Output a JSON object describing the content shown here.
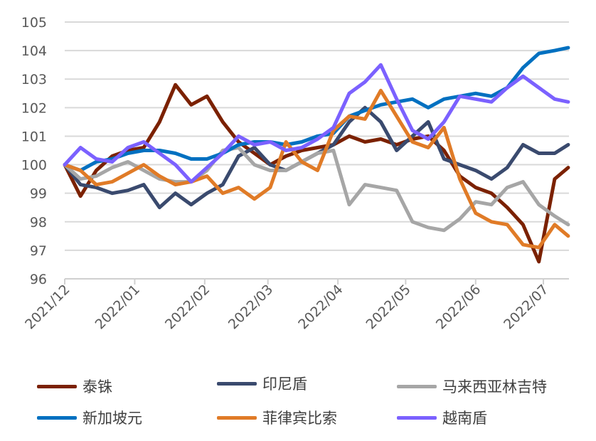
{
  "chart_data": {
    "type": "line",
    "ylim": [
      96,
      105
    ],
    "yticks": [
      96,
      97,
      98,
      99,
      100,
      101,
      102,
      103,
      104,
      105
    ],
    "xticks": [
      "2021/12",
      "2022/01",
      "2022/02",
      "2022/03",
      "2022/04",
      "2022/05",
      "2022/06",
      "2022/07"
    ],
    "grid": "horizontal",
    "legend_position": "bottom",
    "x": [
      "2021-12-01",
      "2021-12-08",
      "2021-12-15",
      "2021-12-22",
      "2021-12-29",
      "2022-01-05",
      "2022-01-12",
      "2022-01-19",
      "2022-01-26",
      "2022-02-02",
      "2022-02-09",
      "2022-02-16",
      "2022-02-23",
      "2022-03-02",
      "2022-03-09",
      "2022-03-16",
      "2022-03-23",
      "2022-03-30",
      "2022-04-06",
      "2022-04-13",
      "2022-04-20",
      "2022-04-27",
      "2022-05-04",
      "2022-05-11",
      "2022-05-18",
      "2022-05-25",
      "2022-06-01",
      "2022-06-08",
      "2022-06-15",
      "2022-06-22",
      "2022-06-29",
      "2022-07-06",
      "2022-07-12"
    ],
    "series": [
      {
        "name": "泰铢",
        "color": "#7b2100",
        "values": [
          100,
          98.9,
          99.8,
          100.3,
          100.5,
          100.6,
          101.5,
          102.8,
          102.1,
          102.4,
          101.5,
          100.8,
          100.4,
          100.0,
          100.3,
          100.5,
          100.6,
          100.7,
          101.0,
          100.8,
          100.9,
          100.7,
          100.9,
          101.0,
          100.5,
          99.6,
          99.2,
          99.0,
          98.5,
          97.9,
          96.6,
          99.5,
          99.9
        ]
      },
      {
        "name": "印尼盾",
        "color": "#3a4a6e",
        "values": [
          100,
          99.3,
          99.2,
          99.0,
          99.1,
          99.3,
          98.5,
          99.0,
          98.6,
          99.0,
          99.3,
          100.3,
          100.6,
          100.0,
          99.8,
          100.1,
          100.4,
          100.7,
          101.5,
          102.0,
          101.5,
          100.5,
          101.0,
          101.5,
          100.2,
          100.0,
          99.8,
          99.5,
          99.9,
          100.7,
          100.4,
          100.4,
          100.7
        ]
      },
      {
        "name": "马来西亚林吉特",
        "color": "#a6a6a6",
        "values": [
          100,
          99.5,
          99.6,
          99.9,
          100.1,
          99.8,
          99.5,
          99.4,
          99.4,
          99.8,
          100.5,
          100.6,
          100.0,
          99.8,
          99.8,
          100.1,
          100.4,
          100.5,
          98.6,
          99.3,
          99.2,
          99.1,
          98.0,
          97.8,
          97.7,
          98.1,
          98.7,
          98.6,
          99.2,
          99.4,
          98.6,
          98.2,
          97.9
        ]
      },
      {
        "name": "新加坡元",
        "color": "#0070c0",
        "values": [
          100,
          99.8,
          100.1,
          100.2,
          100.4,
          100.5,
          100.5,
          100.4,
          100.2,
          100.2,
          100.4,
          100.7,
          100.8,
          100.8,
          100.7,
          100.8,
          101.0,
          101.1,
          101.7,
          101.9,
          102.1,
          102.2,
          102.3,
          102.0,
          102.3,
          102.4,
          102.5,
          102.4,
          102.7,
          103.4,
          103.9,
          104.0,
          104.1
        ]
      },
      {
        "name": "菲律宾比索",
        "color": "#e07b27",
        "values": [
          100,
          99.8,
          99.3,
          99.4,
          99.7,
          100.0,
          99.6,
          99.3,
          99.4,
          99.6,
          99.0,
          99.2,
          98.8,
          99.2,
          100.8,
          100.1,
          99.8,
          101.2,
          101.7,
          101.6,
          102.6,
          101.7,
          100.8,
          100.6,
          101.3,
          99.5,
          98.3,
          98.0,
          97.9,
          97.2,
          97.1,
          97.9,
          97.5
        ]
      },
      {
        "name": "越南盾",
        "color": "#7b61ff",
        "values": [
          100,
          100.6,
          100.2,
          100.1,
          100.6,
          100.8,
          100.4,
          100.0,
          99.4,
          99.9,
          100.4,
          101.0,
          100.7,
          100.8,
          100.5,
          100.6,
          100.9,
          101.3,
          102.5,
          102.9,
          103.5,
          102.3,
          101.2,
          100.9,
          101.5,
          102.4,
          102.3,
          102.2,
          102.7,
          103.1,
          102.7,
          102.3,
          102.2
        ]
      }
    ]
  }
}
